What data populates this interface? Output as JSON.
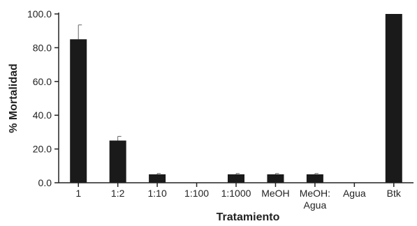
{
  "chart_data": {
    "type": "bar",
    "title": "",
    "xlabel": "Tratamiento",
    "ylabel": "% Mortalidad",
    "ylim": [
      0,
      100
    ],
    "yticks": [
      "0.0",
      "20.0",
      "40.0",
      "60.0",
      "80.0",
      "100.0"
    ],
    "categories": [
      "1",
      "1:2",
      "1:10",
      "1:100",
      "1:1000",
      "MeOH",
      "MeOH:\nAgua",
      "Agua",
      "Btk"
    ],
    "values": [
      85,
      25,
      5,
      0,
      5,
      5,
      5,
      0,
      100
    ],
    "errors": [
      8.5,
      2.5,
      0.5,
      0,
      0.5,
      0.5,
      0.5,
      0,
      0
    ],
    "bar_color": "#1a1a1a",
    "grid": false,
    "legend": "none"
  }
}
